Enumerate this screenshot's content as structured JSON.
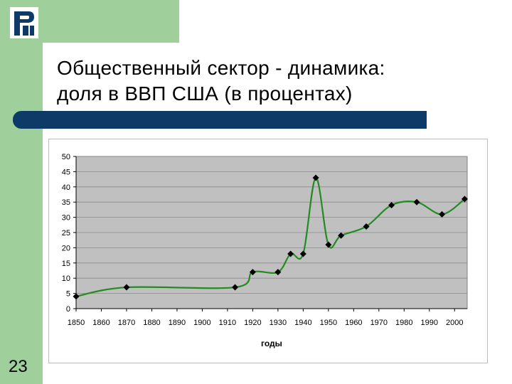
{
  "slide": {
    "title_line1": "Общественный сектор - динамика:",
    "title_line2": "доля в ВВП США (в процентах)",
    "number": "23"
  },
  "colors": {
    "sidebar": "#9fcf9a",
    "bar": "#0d3a66",
    "plot_bg": "#c0c0c0",
    "line": "#228b22",
    "marker": "#000000"
  },
  "chart_data": {
    "type": "line",
    "title": "",
    "xlabel": "годы",
    "ylabel": "",
    "xlim": [
      1850,
      2005
    ],
    "ylim": [
      0,
      50
    ],
    "x_ticks": [
      "1850",
      "1860",
      "1870",
      "1880",
      "1890",
      "1900",
      "1910",
      "1920",
      "1930",
      "1940",
      "1950",
      "1960",
      "1970",
      "1980",
      "1990",
      "2000"
    ],
    "y_ticks": [
      "0",
      "5",
      "10",
      "15",
      "20",
      "25",
      "30",
      "35",
      "40",
      "45",
      "50"
    ],
    "grid": true,
    "legend": "none",
    "series": [
      {
        "x": [
          1850,
          1870,
          1913,
          1920,
          1930,
          1935,
          1940,
          1945,
          1950,
          1955,
          1965,
          1975,
          1985,
          1995,
          2004
        ],
        "y": [
          4,
          7,
          7,
          12,
          12,
          18,
          18,
          43,
          21,
          24,
          27,
          34,
          35,
          31,
          36
        ]
      }
    ]
  }
}
